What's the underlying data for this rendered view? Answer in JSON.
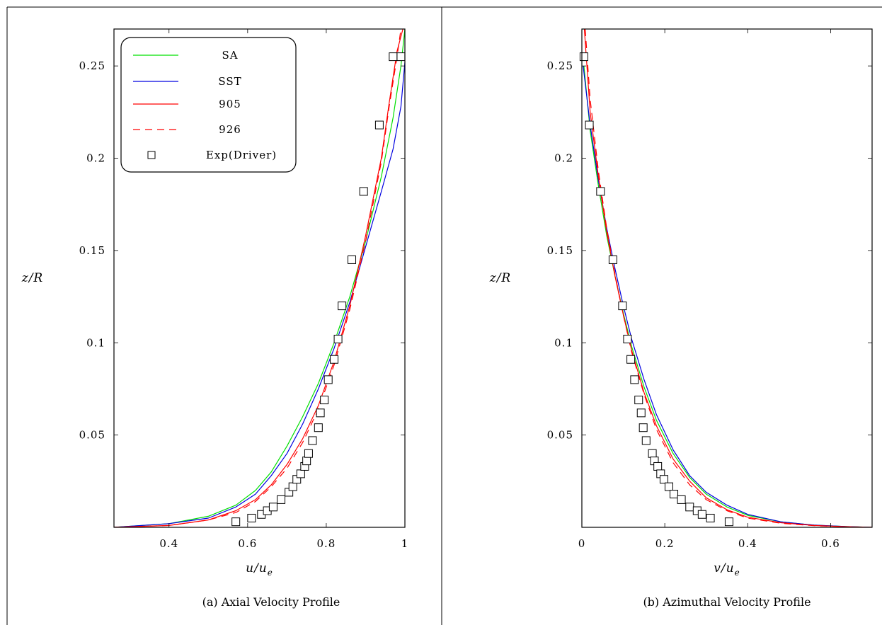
{
  "chart_data": [
    {
      "type": "line",
      "caption": "(a) Axial Velocity Profile",
      "xlabel": "u/u",
      "xlabel_sub": "e",
      "ylabel": "z/R",
      "xlim": [
        0.26,
        1.0
      ],
      "ylim": [
        0.0,
        0.27
      ],
      "xticks": [
        0.4,
        0.6,
        0.8,
        1.0
      ],
      "xtick_labels": [
        "0.4",
        "0.6",
        "0.8",
        "1"
      ],
      "yticks": [
        0.05,
        0.1,
        0.15,
        0.2,
        0.25
      ],
      "ytick_labels": [
        "0.05",
        "0.1",
        "0.15",
        "0.2",
        "0.25"
      ],
      "legend_position": "top-left",
      "series": [
        {
          "name": "SA",
          "color": "#00e000",
          "dash": "solid",
          "x": [
            0.26,
            0.4,
            0.5,
            0.57,
            0.62,
            0.66,
            0.7,
            0.74,
            0.78,
            0.82,
            0.86,
            0.9,
            0.94,
            0.97,
            0.99,
            1.0
          ],
          "y": [
            0.0,
            0.002,
            0.006,
            0.012,
            0.02,
            0.03,
            0.044,
            0.06,
            0.078,
            0.1,
            0.125,
            0.155,
            0.19,
            0.222,
            0.25,
            0.27
          ]
        },
        {
          "name": "SST",
          "color": "#0000e0",
          "dash": "solid",
          "x": [
            0.26,
            0.4,
            0.5,
            0.57,
            0.62,
            0.66,
            0.7,
            0.74,
            0.78,
            0.82,
            0.86,
            0.9,
            0.94,
            0.97,
            0.99,
            1.0
          ],
          "y": [
            0.0,
            0.002,
            0.005,
            0.011,
            0.018,
            0.028,
            0.04,
            0.056,
            0.075,
            0.097,
            0.122,
            0.152,
            0.182,
            0.205,
            0.228,
            0.252
          ]
        },
        {
          "name": "905",
          "color": "#ff0000",
          "dash": "solid",
          "x": [
            0.26,
            0.4,
            0.5,
            0.57,
            0.62,
            0.66,
            0.7,
            0.74,
            0.78,
            0.82,
            0.86,
            0.9,
            0.94,
            0.96,
            0.98,
            0.995
          ],
          "y": [
            0.0,
            0.001,
            0.004,
            0.009,
            0.015,
            0.023,
            0.034,
            0.048,
            0.066,
            0.09,
            0.12,
            0.158,
            0.2,
            0.23,
            0.258,
            0.27
          ]
        },
        {
          "name": "926",
          "color": "#ff0000",
          "dash": "dashed",
          "x": [
            0.26,
            0.4,
            0.5,
            0.57,
            0.62,
            0.66,
            0.7,
            0.74,
            0.78,
            0.82,
            0.86,
            0.9,
            0.94,
            0.96,
            0.98,
            0.99
          ],
          "y": [
            0.0,
            0.001,
            0.004,
            0.008,
            0.014,
            0.022,
            0.032,
            0.046,
            0.064,
            0.088,
            0.118,
            0.155,
            0.198,
            0.228,
            0.255,
            0.27
          ]
        },
        {
          "name": "Exp(Driver)",
          "marker": "square",
          "color": "#000000",
          "x": [
            0.57,
            0.61,
            0.635,
            0.65,
            0.665,
            0.685,
            0.705,
            0.715,
            0.725,
            0.735,
            0.745,
            0.75,
            0.755,
            0.765,
            0.78,
            0.785,
            0.795,
            0.805,
            0.82,
            0.83,
            0.84,
            0.865,
            0.895,
            0.935,
            0.97,
            0.99
          ],
          "y": [
            0.003,
            0.005,
            0.007,
            0.009,
            0.011,
            0.015,
            0.019,
            0.022,
            0.026,
            0.029,
            0.033,
            0.036,
            0.04,
            0.047,
            0.054,
            0.062,
            0.069,
            0.08,
            0.091,
            0.102,
            0.12,
            0.145,
            0.182,
            0.218,
            0.255,
            0.255
          ]
        }
      ]
    },
    {
      "type": "line",
      "caption": "(b) Azimuthal Velocity Profile",
      "xlabel": "v/u",
      "xlabel_sub": "e",
      "ylabel": "z/R",
      "xlim": [
        0.0,
        0.7
      ],
      "ylim": [
        0.0,
        0.27
      ],
      "xticks": [
        0.0,
        0.2,
        0.4,
        0.6
      ],
      "xtick_labels": [
        "0",
        "0.2",
        "0.4",
        "0.6"
      ],
      "yticks": [
        0.05,
        0.1,
        0.15,
        0.2,
        0.25
      ],
      "ytick_labels": [
        "0.05",
        "0.1",
        "0.15",
        "0.2",
        "0.25"
      ],
      "series": [
        {
          "name": "SA",
          "color": "#00e000",
          "dash": "solid",
          "x": [
            0.005,
            0.02,
            0.04,
            0.06,
            0.08,
            0.1,
            0.12,
            0.15,
            0.18,
            0.22,
            0.26,
            0.3,
            0.35,
            0.4,
            0.48,
            0.56,
            0.64,
            0.7
          ],
          "y": [
            0.25,
            0.215,
            0.185,
            0.158,
            0.136,
            0.116,
            0.098,
            0.076,
            0.058,
            0.04,
            0.027,
            0.018,
            0.011,
            0.0065,
            0.003,
            0.0012,
            0.0004,
            0.0
          ]
        },
        {
          "name": "SST",
          "color": "#0000e0",
          "dash": "solid",
          "x": [
            0.003,
            0.02,
            0.04,
            0.06,
            0.08,
            0.1,
            0.12,
            0.15,
            0.18,
            0.22,
            0.26,
            0.3,
            0.35,
            0.4,
            0.48,
            0.56,
            0.64,
            0.7
          ],
          "y": [
            0.25,
            0.218,
            0.188,
            0.162,
            0.14,
            0.12,
            0.102,
            0.08,
            0.061,
            0.042,
            0.028,
            0.019,
            0.012,
            0.007,
            0.003,
            0.0012,
            0.0004,
            0.0
          ]
        },
        {
          "name": "905",
          "color": "#ff0000",
          "dash": "solid",
          "x": [
            0.006,
            0.02,
            0.04,
            0.06,
            0.08,
            0.1,
            0.12,
            0.15,
            0.18,
            0.22,
            0.26,
            0.3,
            0.35,
            0.4,
            0.48,
            0.56,
            0.64,
            0.7
          ],
          "y": [
            0.27,
            0.225,
            0.19,
            0.16,
            0.136,
            0.115,
            0.096,
            0.073,
            0.055,
            0.037,
            0.025,
            0.016,
            0.0095,
            0.0055,
            0.0025,
            0.001,
            0.0003,
            0.0
          ]
        },
        {
          "name": "926",
          "color": "#ff0000",
          "dash": "dashed",
          "x": [
            0.008,
            0.02,
            0.04,
            0.06,
            0.08,
            0.1,
            0.12,
            0.15,
            0.18,
            0.22,
            0.26,
            0.3,
            0.35,
            0.4,
            0.48,
            0.56,
            0.64,
            0.7
          ],
          "y": [
            0.27,
            0.232,
            0.193,
            0.162,
            0.137,
            0.115,
            0.095,
            0.072,
            0.053,
            0.035,
            0.023,
            0.015,
            0.009,
            0.005,
            0.0022,
            0.0009,
            0.0003,
            0.0
          ]
        },
        {
          "name": "Exp(Driver)",
          "marker": "square",
          "color": "#000000",
          "x": [
            0.005,
            0.018,
            0.045,
            0.075,
            0.098,
            0.11,
            0.118,
            0.127,
            0.137,
            0.143,
            0.148,
            0.155,
            0.17,
            0.175,
            0.183,
            0.19,
            0.198,
            0.21,
            0.222,
            0.24,
            0.26,
            0.278,
            0.29,
            0.31,
            0.355
          ],
          "y": [
            0.255,
            0.218,
            0.182,
            0.145,
            0.12,
            0.102,
            0.091,
            0.08,
            0.069,
            0.062,
            0.054,
            0.047,
            0.04,
            0.036,
            0.033,
            0.029,
            0.026,
            0.022,
            0.018,
            0.015,
            0.011,
            0.009,
            0.007,
            0.005,
            0.003
          ]
        }
      ]
    }
  ]
}
